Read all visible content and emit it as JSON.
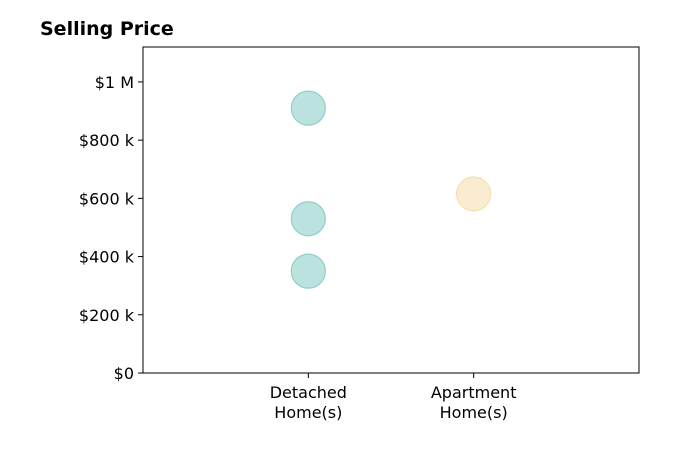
{
  "chart_data": {
    "type": "scatter",
    "title": "Selling Price",
    "xlabel": "",
    "ylabel": "",
    "categories": [
      {
        "lines": [
          "Detached",
          "Home(s)"
        ]
      },
      {
        "lines": [
          "Apartment",
          "Home(s)"
        ]
      }
    ],
    "xlim": [
      0,
      3
    ],
    "ylim": [
      0,
      1120000
    ],
    "yticks": [
      {
        "value": 0,
        "label": "$0"
      },
      {
        "value": 200000,
        "label": "$200 k"
      },
      {
        "value": 400000,
        "label": "$400 k"
      },
      {
        "value": 600000,
        "label": "$600 k"
      },
      {
        "value": 800000,
        "label": "$800 k"
      },
      {
        "value": 1000000,
        "label": "$1 M"
      }
    ],
    "series": [
      {
        "category_index": 0,
        "color": "#8ecfc9",
        "points": [
          910000,
          530000,
          350000
        ]
      },
      {
        "category_index": 1,
        "color": "#f5dfb0",
        "points": [
          615000
        ]
      }
    ],
    "grid": false,
    "legend": "none"
  }
}
